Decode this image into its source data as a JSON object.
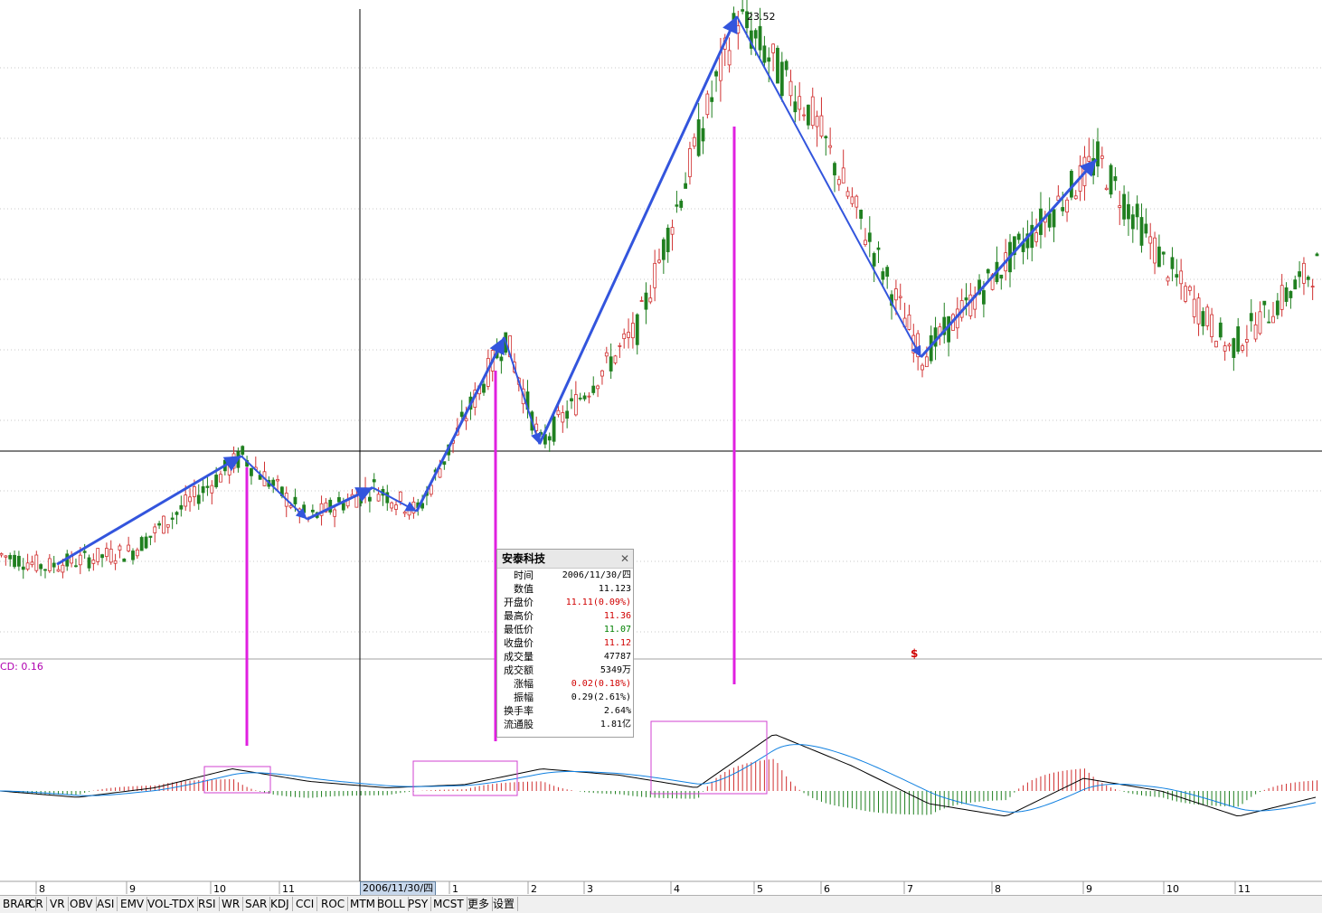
{
  "stock_name": "安泰科技",
  "peak_label": "23.52",
  "macd_label": "CD: 0.16",
  "marker": "$",
  "selected_date": "2006/11/30/四",
  "tooltip": {
    "title": "安泰科技",
    "close_icon": "close-icon",
    "rows": [
      {
        "label": "时间",
        "value": "2006/11/30/四",
        "color": "#000000"
      },
      {
        "label": "数值",
        "value": "11.123",
        "color": "#000000"
      },
      {
        "label": "开盘价",
        "value": "11.11(0.09%)",
        "color": "#d00000"
      },
      {
        "label": "最高价",
        "value": "11.36",
        "color": "#d00000"
      },
      {
        "label": "最低价",
        "value": "11.07",
        "color": "#008000"
      },
      {
        "label": "收盘价",
        "value": "11.12",
        "color": "#d00000"
      },
      {
        "label": "成交量",
        "value": "47787",
        "color": "#000000"
      },
      {
        "label": "成交额",
        "value": "5349万",
        "color": "#000000"
      },
      {
        "label": "涨幅",
        "value": "0.02(0.18%)",
        "color": "#d00000"
      },
      {
        "label": "振幅",
        "value": "0.29(2.61%)",
        "color": "#000000"
      },
      {
        "label": "换手率",
        "value": "2.64%",
        "color": "#000000"
      },
      {
        "label": "流通股",
        "value": "1.81亿",
        "color": "#000000"
      }
    ]
  },
  "tabs": [
    "BRAR",
    "CR",
    "VR",
    "OBV",
    "ASI",
    "EMV",
    "VOL-TDX",
    "RSI",
    "WR",
    "SAR",
    "KDJ",
    "CCI",
    "ROC",
    "MTM",
    "BOLL",
    "PSY",
    "MCST",
    "更多",
    "设置"
  ],
  "colors": {
    "up": "#d03030",
    "down": "#208020",
    "arrow": "#3355dd",
    "magenta": "#e020e0",
    "dif": "#000000",
    "dea": "#1080e0",
    "box": "#d040d0"
  },
  "chart_data": {
    "type": "candlestick",
    "title": "安泰科技",
    "x_tick_labels": [
      "8",
      "9",
      "10",
      "11",
      "2006/11/30/四",
      "1",
      "2",
      "3",
      "4",
      "5",
      "6",
      "7",
      "8",
      "9",
      "10",
      "11"
    ],
    "y_peak": 23.52,
    "crosshair": {
      "date": "2006/11/30/四",
      "value": 11.123
    },
    "price_path": [
      {
        "date_idx": 0,
        "price": 9.9
      },
      {
        "date_idx": 10,
        "price": 9.6
      },
      {
        "date_idx": 30,
        "price": 10.0
      },
      {
        "date_idx": 55,
        "price": 12.4
      },
      {
        "date_idx": 70,
        "price": 10.8
      },
      {
        "date_idx": 85,
        "price": 11.6
      },
      {
        "date_idx": 95,
        "price": 11.0
      },
      {
        "date_idx": 115,
        "price": 15.4
      },
      {
        "date_idx": 123,
        "price": 12.7
      },
      {
        "date_idx": 145,
        "price": 15.6
      },
      {
        "date_idx": 168,
        "price": 23.52
      },
      {
        "date_idx": 185,
        "price": 21.0
      },
      {
        "date_idx": 210,
        "price": 14.9
      },
      {
        "date_idx": 250,
        "price": 19.9
      },
      {
        "date_idx": 265,
        "price": 17.3
      },
      {
        "date_idx": 280,
        "price": 15.1
      },
      {
        "date_idx": 300,
        "price": 17.2
      }
    ],
    "macd": {
      "label": "CD: 0.16",
      "dif_path": [
        0.0,
        -0.1,
        0.05,
        0.35,
        0.15,
        0.05,
        0.1,
        0.35,
        0.25,
        0.05,
        0.9,
        0.4,
        -0.2,
        -0.4,
        0.2,
        0.0,
        -0.4,
        -0.1
      ]
    },
    "arrows": [
      {
        "from_idx": 13,
        "to_idx": 55,
        "direction": "up"
      },
      {
        "from_idx": 55,
        "to_idx": 70,
        "direction": "down"
      },
      {
        "from_idx": 70,
        "to_idx": 85,
        "direction": "up"
      },
      {
        "from_idx": 85,
        "to_idx": 95,
        "direction": "down"
      },
      {
        "from_idx": 95,
        "to_idx": 115,
        "direction": "up"
      },
      {
        "from_idx": 115,
        "to_idx": 123,
        "direction": "down"
      },
      {
        "from_idx": 123,
        "to_idx": 168,
        "direction": "up"
      },
      {
        "from_idx": 168,
        "to_idx": 210,
        "direction": "down"
      },
      {
        "from_idx": 210,
        "to_idx": 250,
        "direction": "up"
      }
    ]
  }
}
